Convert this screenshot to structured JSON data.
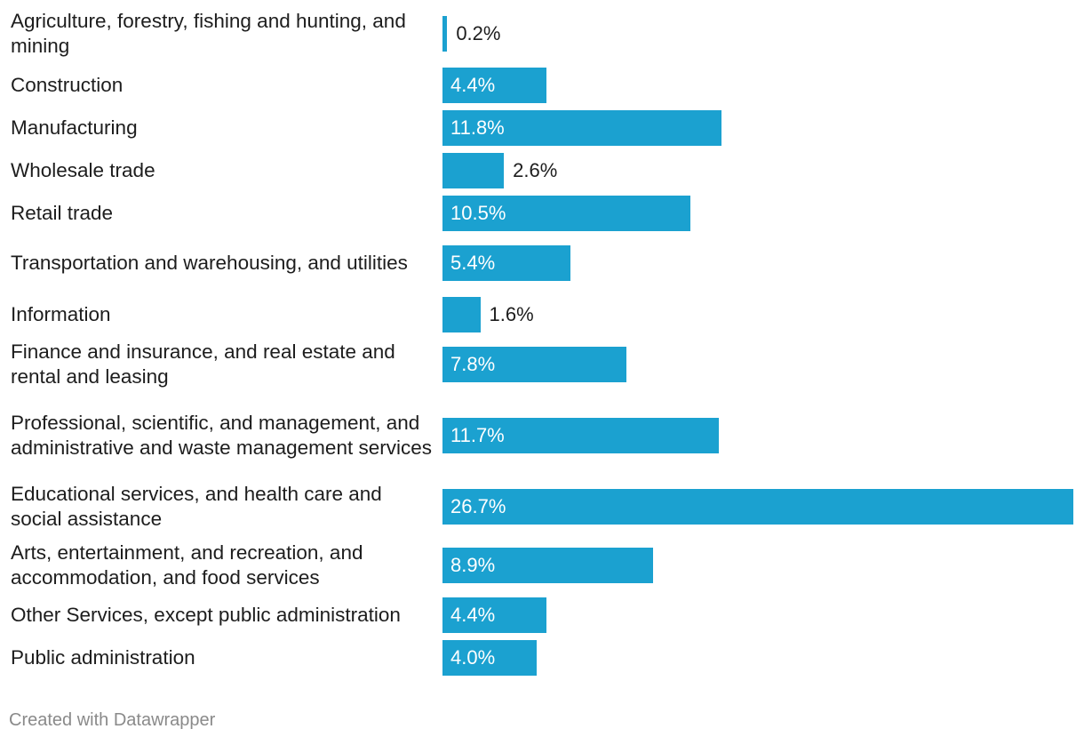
{
  "colors": {
    "bar": "#1ba1d0",
    "text": "#1d1d1d",
    "footer": "#8a8a8a"
  },
  "footer": "Created with Datawrapper",
  "chart_data": {
    "type": "bar",
    "orientation": "horizontal",
    "title": "",
    "xlabel": "",
    "ylabel": "",
    "xlim": [
      0,
      26.7
    ],
    "value_suffix": "%",
    "categories": [
      "Agriculture, forestry, fishing and hunting, and mining",
      "Construction",
      "Manufacturing",
      "Wholesale trade",
      "Retail trade",
      "Transportation and warehousing, and utilities",
      "Information",
      "Finance and insurance, and real estate and rental and leasing",
      "Professional, scientific, and management, and administrative and waste management services",
      "Educational services, and health care and social assistance",
      "Arts, entertainment, and recreation, and accommodation, and food services",
      "Other Services, except public administration",
      "Public administration"
    ],
    "values": [
      0.2,
      4.4,
      11.8,
      2.6,
      10.5,
      5.4,
      1.6,
      7.8,
      11.7,
      26.7,
      8.9,
      4.4,
      4.0
    ],
    "labels": [
      "0.2%",
      "4.4%",
      "11.8%",
      "2.6%",
      "10.5%",
      "5.4%",
      "1.6%",
      "7.8%",
      "11.7%",
      "26.7%",
      "8.9%",
      "4.4%",
      "4.0%"
    ]
  }
}
